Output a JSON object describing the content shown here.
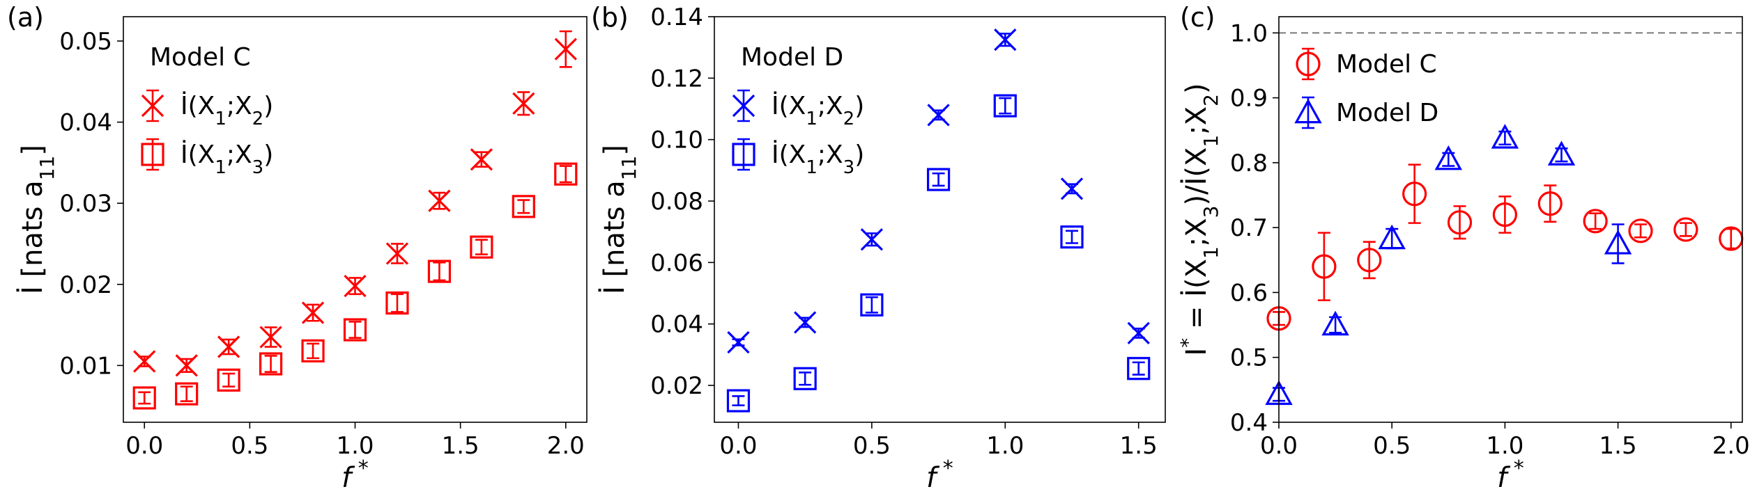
{
  "chart_data": [
    {
      "type": "scatter",
      "panel_label": "(a)",
      "legend_title": "Model C",
      "legend_placement": "top-left",
      "xlabel": "f *",
      "ylabel": "İ [nats a11]",
      "xlim": [
        -0.1,
        2.1
      ],
      "ylim": [
        0.003,
        0.053
      ],
      "xticks": [
        0.0,
        0.5,
        1.0,
        1.5,
        2.0
      ],
      "xtick_labels": [
        "0.0",
        "0.5",
        "1.0",
        "1.5",
        "2.0"
      ],
      "yticks": [
        0.01,
        0.02,
        0.03,
        0.04,
        0.05
      ],
      "ytick_labels": [
        "0.01",
        "0.02",
        "0.03",
        "0.04",
        "0.05"
      ],
      "grid": false,
      "series": [
        {
          "name": "İ(X1;X2)",
          "name_parts": {
            "base": "İ(X",
            "s1": "1",
            "mid": ";X",
            "s2": "2",
            "end": ")"
          },
          "marker": "x",
          "color": "#ff0000",
          "x": [
            0.0,
            0.2,
            0.4,
            0.6,
            0.8,
            1.0,
            1.2,
            1.4,
            1.6,
            1.8,
            2.0
          ],
          "y": [
            0.0105,
            0.01,
            0.0123,
            0.0135,
            0.0165,
            0.0198,
            0.0238,
            0.0303,
            0.0354,
            0.0423,
            0.049
          ],
          "err": [
            0.0006,
            0.0008,
            0.0009,
            0.0012,
            0.001,
            0.001,
            0.0012,
            0.001,
            0.0009,
            0.0014,
            0.0022
          ]
        },
        {
          "name": "İ(X1;X3)",
          "name_parts": {
            "base": "İ(X",
            "s1": "1",
            "mid": ";X",
            "s2": "3",
            "end": ")"
          },
          "marker": "square",
          "color": "#ff0000",
          "x": [
            0.0,
            0.2,
            0.4,
            0.6,
            0.8,
            1.0,
            1.2,
            1.4,
            1.6,
            1.8,
            2.0
          ],
          "y": [
            0.006,
            0.0065,
            0.0082,
            0.0102,
            0.0118,
            0.0144,
            0.0177,
            0.0216,
            0.0246,
            0.0296,
            0.0336
          ],
          "err": [
            0.0007,
            0.0009,
            0.0008,
            0.001,
            0.0009,
            0.001,
            0.0011,
            0.0011,
            0.0009,
            0.0008,
            0.001
          ]
        }
      ]
    },
    {
      "type": "scatter",
      "panel_label": "(b)",
      "legend_title": "Model D",
      "legend_placement": "top-left",
      "xlabel": "f *",
      "ylabel": "İ [nats a11]",
      "xlim": [
        -0.09,
        1.6
      ],
      "ylim": [
        0.008,
        0.14
      ],
      "xticks": [
        0.0,
        0.5,
        1.0,
        1.5
      ],
      "xtick_labels": [
        "0.0",
        "0.5",
        "1.0",
        "1.5"
      ],
      "yticks": [
        0.02,
        0.04,
        0.06,
        0.08,
        0.1,
        0.12,
        0.14
      ],
      "ytick_labels": [
        "0.02",
        "0.04",
        "0.06",
        "0.08",
        "0.10",
        "0.12",
        "0.14"
      ],
      "grid": false,
      "series": [
        {
          "name": "İ(X1;X2)",
          "name_parts": {
            "base": "İ(X",
            "s1": "1",
            "mid": ";X",
            "s2": "2",
            "end": ")"
          },
          "marker": "x",
          "color": "#0000ff",
          "x": [
            0.0,
            0.25,
            0.5,
            0.75,
            1.0,
            1.25,
            1.5
          ],
          "y": [
            0.034,
            0.0405,
            0.0675,
            0.108,
            0.1325,
            0.084,
            0.037
          ],
          "err": [
            0.001,
            0.0015,
            0.002,
            0.0015,
            0.002,
            0.0015,
            0.0015
          ]
        },
        {
          "name": "İ(X1;X3)",
          "name_parts": {
            "base": "İ(X",
            "s1": "1",
            "mid": ";X",
            "s2": "3",
            "end": ")"
          },
          "marker": "square",
          "color": "#0000ff",
          "x": [
            0.0,
            0.25,
            0.5,
            0.75,
            1.0,
            1.25,
            1.5
          ],
          "y": [
            0.015,
            0.0222,
            0.0462,
            0.087,
            0.111,
            0.0683,
            0.0255
          ],
          "err": [
            0.0015,
            0.002,
            0.0025,
            0.002,
            0.0025,
            0.002,
            0.002
          ]
        }
      ]
    },
    {
      "type": "scatter",
      "panel_label": "(c)",
      "legend_placement": "top-left",
      "xlabel": "f *",
      "ylabel": "I* = İ(X1;X3)/İ(X1;X2)",
      "xlim": [
        0.0,
        2.05
      ],
      "ylim": [
        0.4,
        1.025
      ],
      "xticks": [
        0.0,
        0.5,
        1.0,
        1.5,
        2.0
      ],
      "xtick_labels": [
        "0.0",
        "0.5",
        "1.0",
        "1.5",
        "2.0"
      ],
      "yticks": [
        0.4,
        0.5,
        0.6,
        0.7,
        0.8,
        0.9,
        1.0
      ],
      "ytick_labels": [
        "0.4",
        "0.5",
        "0.6",
        "0.7",
        "0.8",
        "0.9",
        "1.0"
      ],
      "grid": false,
      "reference_line": {
        "y": 1.0,
        "style": "dashed",
        "color": "#808080"
      },
      "series": [
        {
          "name": "Model C",
          "marker": "circle",
          "color": "#ff0000",
          "x": [
            0.0,
            0.2,
            0.4,
            0.6,
            0.8,
            1.0,
            1.2,
            1.4,
            1.6,
            1.8,
            2.0
          ],
          "y": [
            0.56,
            0.64,
            0.65,
            0.752,
            0.708,
            0.72,
            0.737,
            0.71,
            0.695,
            0.697,
            0.683
          ],
          "err": [
            0.01,
            0.052,
            0.028,
            0.045,
            0.025,
            0.028,
            0.028,
            0.012,
            0.01,
            0.01,
            0.015
          ]
        },
        {
          "name": "Model D",
          "marker": "triangle",
          "color": "#0000ff",
          "x": [
            0.0,
            0.25,
            0.5,
            0.75,
            1.0,
            1.25,
            1.5
          ],
          "y": [
            0.443,
            0.55,
            0.683,
            0.805,
            0.838,
            0.812,
            0.675
          ],
          "err": [
            0.01,
            0.012,
            0.015,
            0.01,
            0.01,
            0.01,
            0.03
          ]
        }
      ]
    }
  ]
}
